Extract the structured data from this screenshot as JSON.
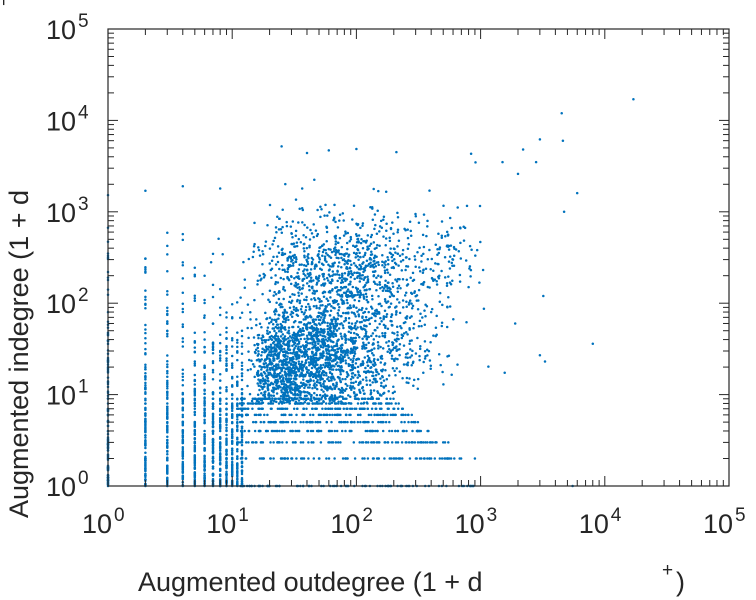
{
  "chart_data": {
    "type": "scatter",
    "xscale": "log",
    "yscale": "log",
    "xlim": [
      1,
      100000
    ],
    "ylim": [
      1,
      100000
    ],
    "xlabel": "Augmented outdegree (1 + d",
    "xlabel_suffix": "+",
    "xlabel_close": ")",
    "ylabel": "Augmented indegree (1 + d",
    "ylabel_suffix": "−",
    "x_ticks": [
      {
        "value": 1,
        "base": "10",
        "exp": "0"
      },
      {
        "value": 10,
        "base": "10",
        "exp": "1"
      },
      {
        "value": 100,
        "base": "10",
        "exp": "2"
      },
      {
        "value": 1000,
        "base": "10",
        "exp": "3"
      },
      {
        "value": 10000,
        "base": "10",
        "exp": "4"
      },
      {
        "value": 100000,
        "base": "10",
        "exp": "5"
      }
    ],
    "y_ticks": [
      {
        "value": 1,
        "base": "10",
        "exp": "0"
      },
      {
        "value": 10,
        "base": "10",
        "exp": "1"
      },
      {
        "value": 100,
        "base": "10",
        "exp": "2"
      },
      {
        "value": 1000,
        "base": "10",
        "exp": "3"
      },
      {
        "value": 10000,
        "base": "10",
        "exp": "4"
      },
      {
        "value": 100000,
        "base": "10",
        "exp": "5"
      }
    ],
    "grid": false,
    "legend": "none",
    "marker_color": "#0072BD",
    "series": [
      {
        "description_points": [
          [
            17000,
            17000
          ],
          [
            4500,
            12000
          ],
          [
            4600,
            6000
          ],
          [
            3000,
            6200
          ],
          [
            2800,
            3500
          ],
          [
            2200,
            4800
          ],
          [
            1500,
            3500
          ],
          [
            6000,
            1600
          ],
          [
            2000,
            2600
          ],
          [
            4700,
            1000
          ],
          [
            25,
            5200
          ],
          [
            40,
            4400
          ],
          [
            60,
            4700
          ],
          [
            210,
            4500
          ],
          [
            4,
            1900
          ],
          [
            8,
            1800
          ],
          [
            2,
            1700
          ],
          [
            8000,
            36
          ],
          [
            3300,
            23
          ],
          [
            3000,
            27
          ],
          [
            1900,
            60
          ],
          [
            3200,
            120
          ],
          [
            5500,
            1
          ],
          [
            900,
            2
          ],
          [
            500,
            3
          ],
          [
            150,
            200
          ],
          [
            300,
            250
          ],
          [
            600,
            300
          ],
          [
            90,
            120
          ],
          [
            50,
            60
          ],
          [
            200,
            120
          ],
          [
            400,
            80
          ],
          [
            800,
            150
          ],
          [
            120,
            35
          ],
          [
            30,
            25
          ]
        ]
      }
    ]
  }
}
